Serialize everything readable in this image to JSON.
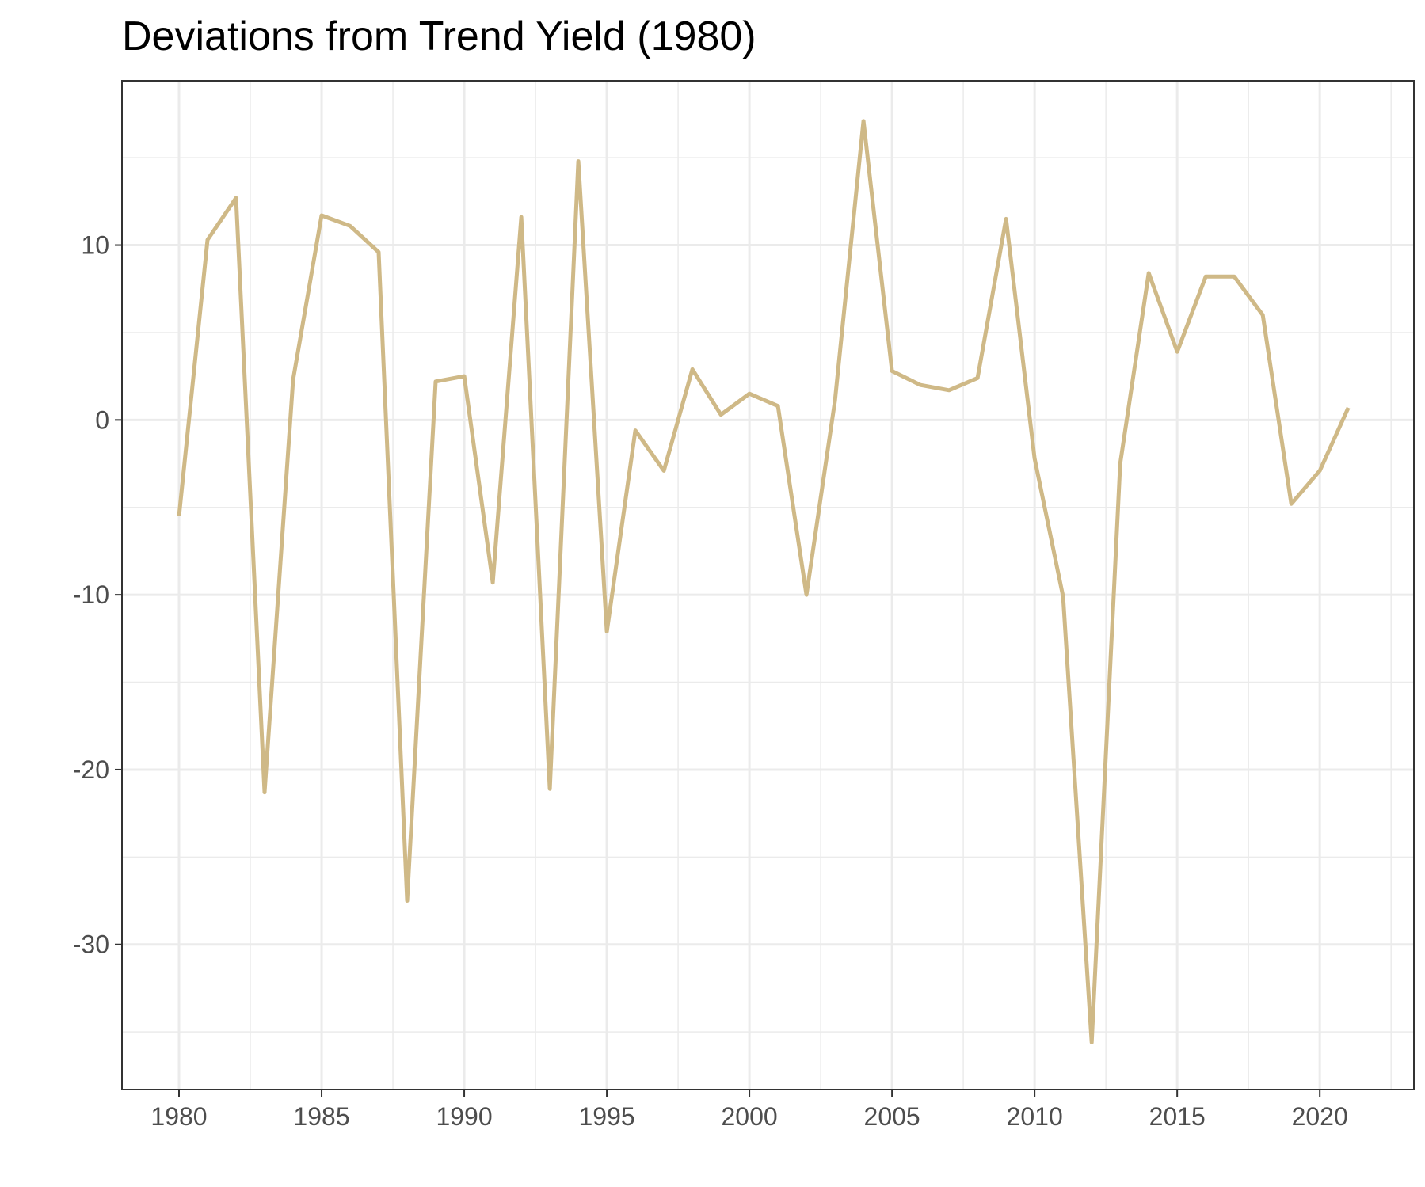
{
  "chart_data": {
    "type": "line",
    "title": "Deviations from Trend Yield (1980)",
    "xlabel": "",
    "ylabel": "",
    "xlim": [
      1978,
      2023.3
    ],
    "ylim": [
      -38.3,
      19.4
    ],
    "x_ticks": [
      1980,
      1985,
      1990,
      1995,
      2000,
      2005,
      2010,
      2015,
      2020
    ],
    "y_ticks": [
      -30,
      -20,
      -10,
      0,
      10
    ],
    "grid": true,
    "legend": "none",
    "line_color": "#cfb987",
    "series": [
      {
        "x": [
          1980,
          1981,
          1982,
          1983,
          1984,
          1985,
          1986,
          1987,
          1988,
          1989,
          1990,
          1991,
          1992,
          1993,
          1994,
          1995,
          1996,
          1997,
          1998,
          1999,
          2000,
          2001,
          2002,
          2003,
          2004,
          2005,
          2006,
          2007,
          2008,
          2009,
          2010,
          2011,
          2012,
          2013,
          2014,
          2015,
          2016,
          2017,
          2018,
          2019,
          2020,
          2021
        ],
        "values": [
          -5.5,
          10.3,
          12.7,
          -21.3,
          2.3,
          11.7,
          11.1,
          9.6,
          -27.5,
          2.2,
          2.5,
          -9.3,
          11.6,
          -21.1,
          14.8,
          -12.1,
          -0.6,
          -2.9,
          2.9,
          0.3,
          1.5,
          0.8,
          -10.0,
          1.1,
          17.1,
          2.8,
          2.0,
          1.7,
          2.4,
          11.5,
          -2.2,
          -10.1,
          -35.6,
          -2.5,
          8.4,
          3.9,
          8.2,
          8.2,
          6.0,
          -4.8,
          -2.9,
          0.7
        ]
      }
    ]
  }
}
